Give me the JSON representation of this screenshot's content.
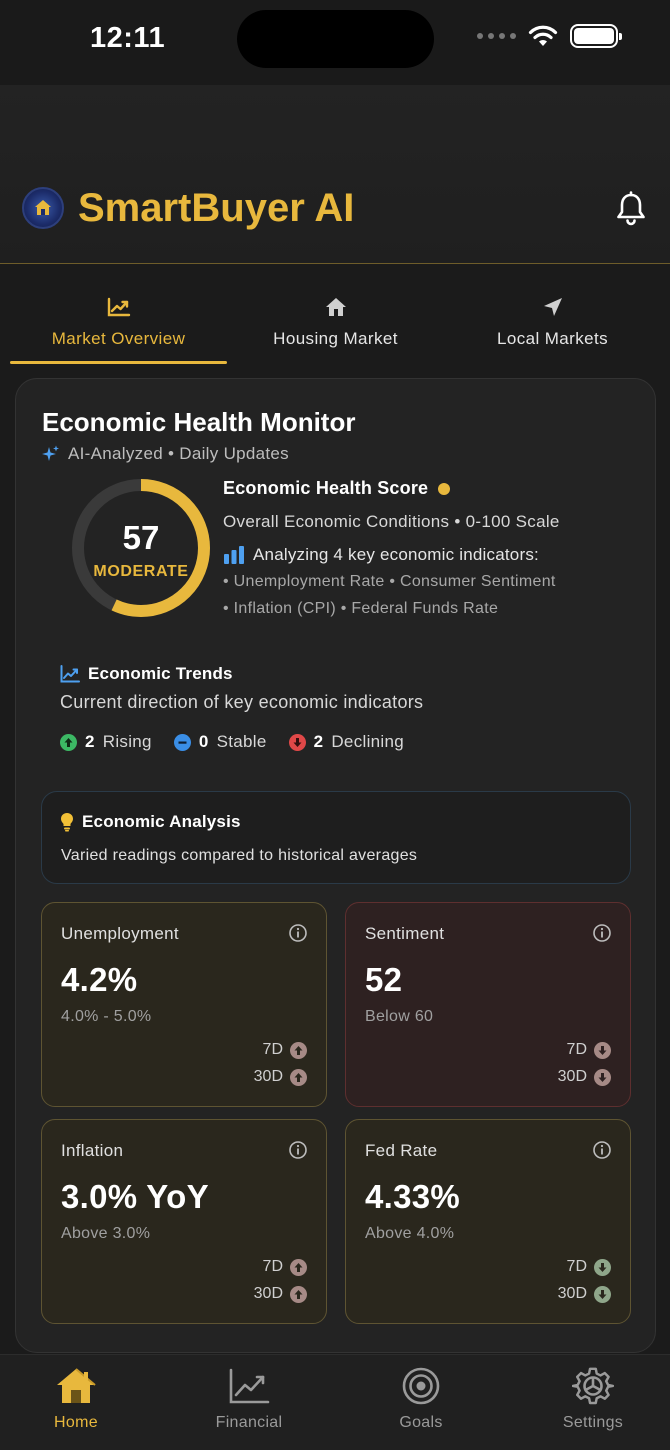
{
  "status_bar": {
    "time": "12:11"
  },
  "header": {
    "app_title": "SmartBuyer AI"
  },
  "tabs": [
    {
      "label": "Market Overview",
      "icon": "chart-line-icon",
      "active": true
    },
    {
      "label": "Housing Market",
      "icon": "house-icon",
      "active": false
    },
    {
      "label": "Local Markets",
      "icon": "location-arrow-icon",
      "active": false
    }
  ],
  "health_monitor": {
    "title": "Economic Health Monitor",
    "subtitle": "AI-Analyzed • Daily Updates",
    "score": "57",
    "score_value": 57,
    "score_label": "MODERATE",
    "score_title": "Economic Health Score",
    "score_sub": "Overall Economic Conditions • 0-100 Scale",
    "analyzing": "Analyzing 4 key economic indicators:",
    "indicators_line1": "• Unemployment Rate • Consumer Sentiment",
    "indicators_line2": "• Inflation (CPI) • Federal Funds Rate",
    "accent_color": "#e8b83d"
  },
  "trends": {
    "title": "Economic Trends",
    "subtitle": "Current direction of key economic indicators",
    "rising_count": "2",
    "rising_label": "Rising",
    "stable_count": "0",
    "stable_label": "Stable",
    "declining_count": "2",
    "declining_label": "Declining"
  },
  "analysis": {
    "title": "Economic Analysis",
    "text": "Varied readings compared to historical averages"
  },
  "metrics": [
    {
      "name": "Unemployment",
      "value": "4.2%",
      "sub": "4.0% - 5.0%",
      "d7": "7D",
      "d30": "30D",
      "trend7": "up",
      "trend30": "up",
      "tone": "gold"
    },
    {
      "name": "Sentiment",
      "value": "52",
      "sub": "Below 60",
      "d7": "7D",
      "d30": "30D",
      "trend7": "down",
      "trend30": "down",
      "tone": "red"
    },
    {
      "name": "Inflation",
      "value": "3.0% YoY",
      "sub": "Above 3.0%",
      "d7": "7D",
      "d30": "30D",
      "trend7": "up",
      "trend30": "up",
      "tone": "gold"
    },
    {
      "name": "Fed Rate",
      "value": "4.33%",
      "sub": "Above 4.0%",
      "d7": "7D",
      "d30": "30D",
      "trend7": "down",
      "trend30": "down",
      "tone": "gold"
    }
  ],
  "bottom_nav": [
    {
      "label": "Home",
      "icon": "home-icon",
      "active": true
    },
    {
      "label": "Financial",
      "icon": "chart-icon",
      "active": false
    },
    {
      "label": "Goals",
      "icon": "target-icon",
      "active": false
    },
    {
      "label": "Settings",
      "icon": "gear-icon",
      "active": false
    }
  ]
}
